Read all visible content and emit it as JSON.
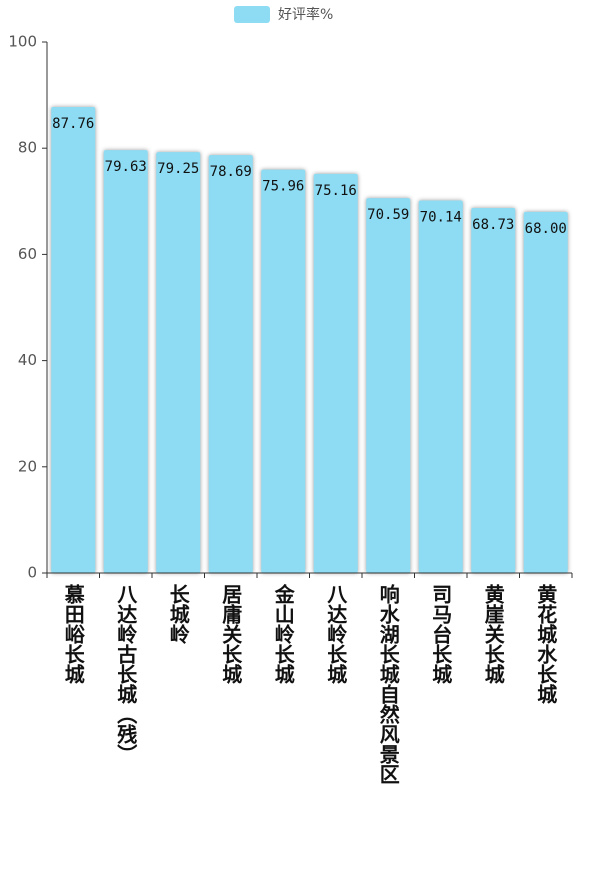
{
  "chart_data": {
    "type": "bar",
    "legend": "好评率%",
    "color": "#8ddcf3",
    "categories": [
      "慕田峪长城",
      "八达岭古长城（残）",
      "长城岭",
      "居庸关长城",
      "金山岭长城",
      "八达岭长城",
      "响水湖长城自然风景区",
      "司马台长城",
      "黄崖关长城",
      "黄花城水长城"
    ],
    "values": [
      87.76,
      79.63,
      79.25,
      78.69,
      75.96,
      75.16,
      70.59,
      70.14,
      68.73,
      68
    ],
    "value_labels": [
      "87.76",
      "79.63",
      "79.25",
      "78.69",
      "75.96",
      "75.16",
      "70.59",
      "70.14",
      "68.73",
      "68.00"
    ],
    "ylim": [
      0,
      100
    ],
    "yticks": [
      0,
      20,
      40,
      60,
      80,
      100
    ]
  }
}
